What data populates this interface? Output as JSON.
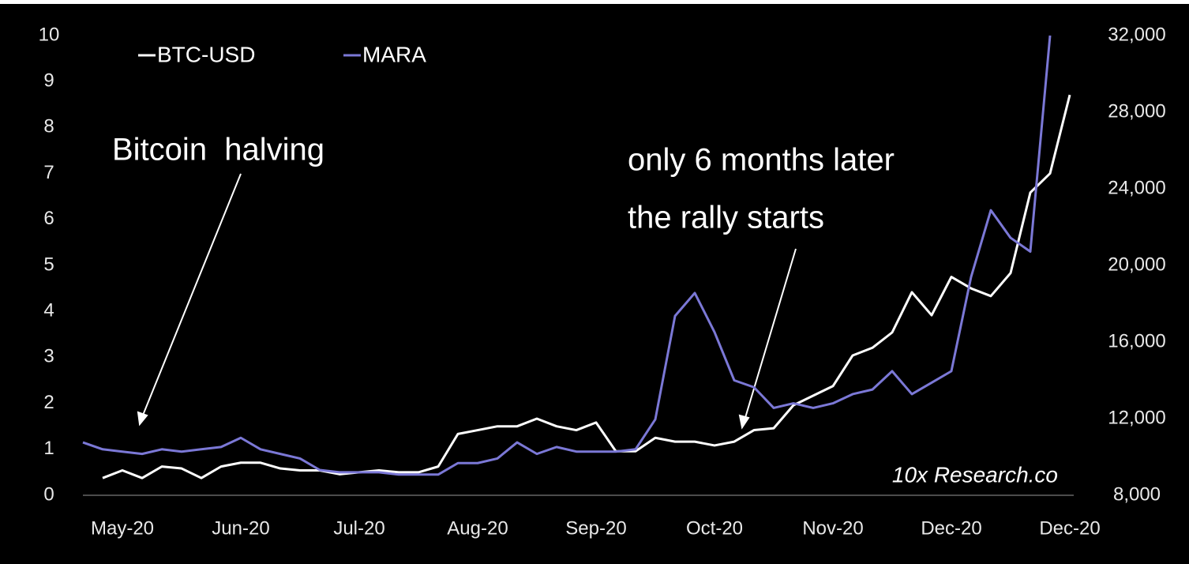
{
  "chart_data": {
    "type": "line",
    "categories": [
      null,
      null,
      "May-20",
      null,
      null,
      null,
      null,
      null,
      "Jun-20",
      null,
      null,
      null,
      null,
      null,
      "Jul-20",
      null,
      null,
      null,
      null,
      null,
      "Aug-20",
      null,
      null,
      null,
      null,
      null,
      "Sep-20",
      null,
      null,
      null,
      null,
      null,
      "Oct-20",
      null,
      null,
      null,
      null,
      null,
      "Nov-20",
      null,
      null,
      null,
      null,
      null,
      "Dec-20",
      null,
      null,
      null,
      null,
      null,
      "Dec-20"
    ],
    "series": [
      {
        "name": "BTC-USD",
        "color": "#ffffff",
        "axis": "y2",
        "values": [
          null,
          8900,
          9300,
          8900,
          9500,
          9400,
          8900,
          9500,
          9700,
          9700,
          9400,
          9300,
          9300,
          9100,
          9200,
          9300,
          9200,
          9200,
          9500,
          11200,
          11400,
          11600,
          11600,
          12000,
          11600,
          11400,
          11800,
          10300,
          10300,
          11000,
          10800,
          10800,
          10600,
          10800,
          11400,
          11500,
          12700,
          13200,
          13700,
          15300,
          15700,
          16500,
          18600,
          17400,
          19400,
          18800,
          18400,
          19600,
          23800,
          24800,
          28900
        ]
      },
      {
        "name": "MARA",
        "color": "#7b78d6",
        "values": [
          1.15,
          1.0,
          0.95,
          0.9,
          1.0,
          0.95,
          1.0,
          1.05,
          1.25,
          1.0,
          0.9,
          0.8,
          0.55,
          0.5,
          0.5,
          0.5,
          0.45,
          0.45,
          0.45,
          0.7,
          0.7,
          0.8,
          1.15,
          0.9,
          1.05,
          0.95,
          0.95,
          0.95,
          1.0,
          1.65,
          3.9,
          4.4,
          3.55,
          2.5,
          2.35,
          1.9,
          2.0,
          1.9,
          2.0,
          2.2,
          2.3,
          2.7,
          2.2,
          2.45,
          2.7,
          4.75,
          6.2,
          5.6,
          5.3,
          10,
          null
        ]
      }
    ],
    "ylim": [
      0,
      10
    ],
    "yticks": [
      0,
      1,
      2,
      3,
      4,
      5,
      6,
      7,
      8,
      9,
      10
    ],
    "y2lim": [
      8000,
      32000
    ],
    "y2ticks": [
      {
        "value": 8000,
        "label": "8,000"
      },
      {
        "value": 12000,
        "label": "12,000"
      },
      {
        "value": 16000,
        "label": "16,000"
      },
      {
        "value": 20000,
        "label": "20,000"
      },
      {
        "value": 24000,
        "label": "24,000"
      },
      {
        "value": 28000,
        "label": "28,000"
      },
      {
        "value": 32000,
        "label": "32,000"
      }
    ],
    "annotations": [
      "Bitcoin  halving",
      "only 6 months later",
      "the rally starts"
    ],
    "watermark": "10x Research.co",
    "legend": "top-left"
  }
}
